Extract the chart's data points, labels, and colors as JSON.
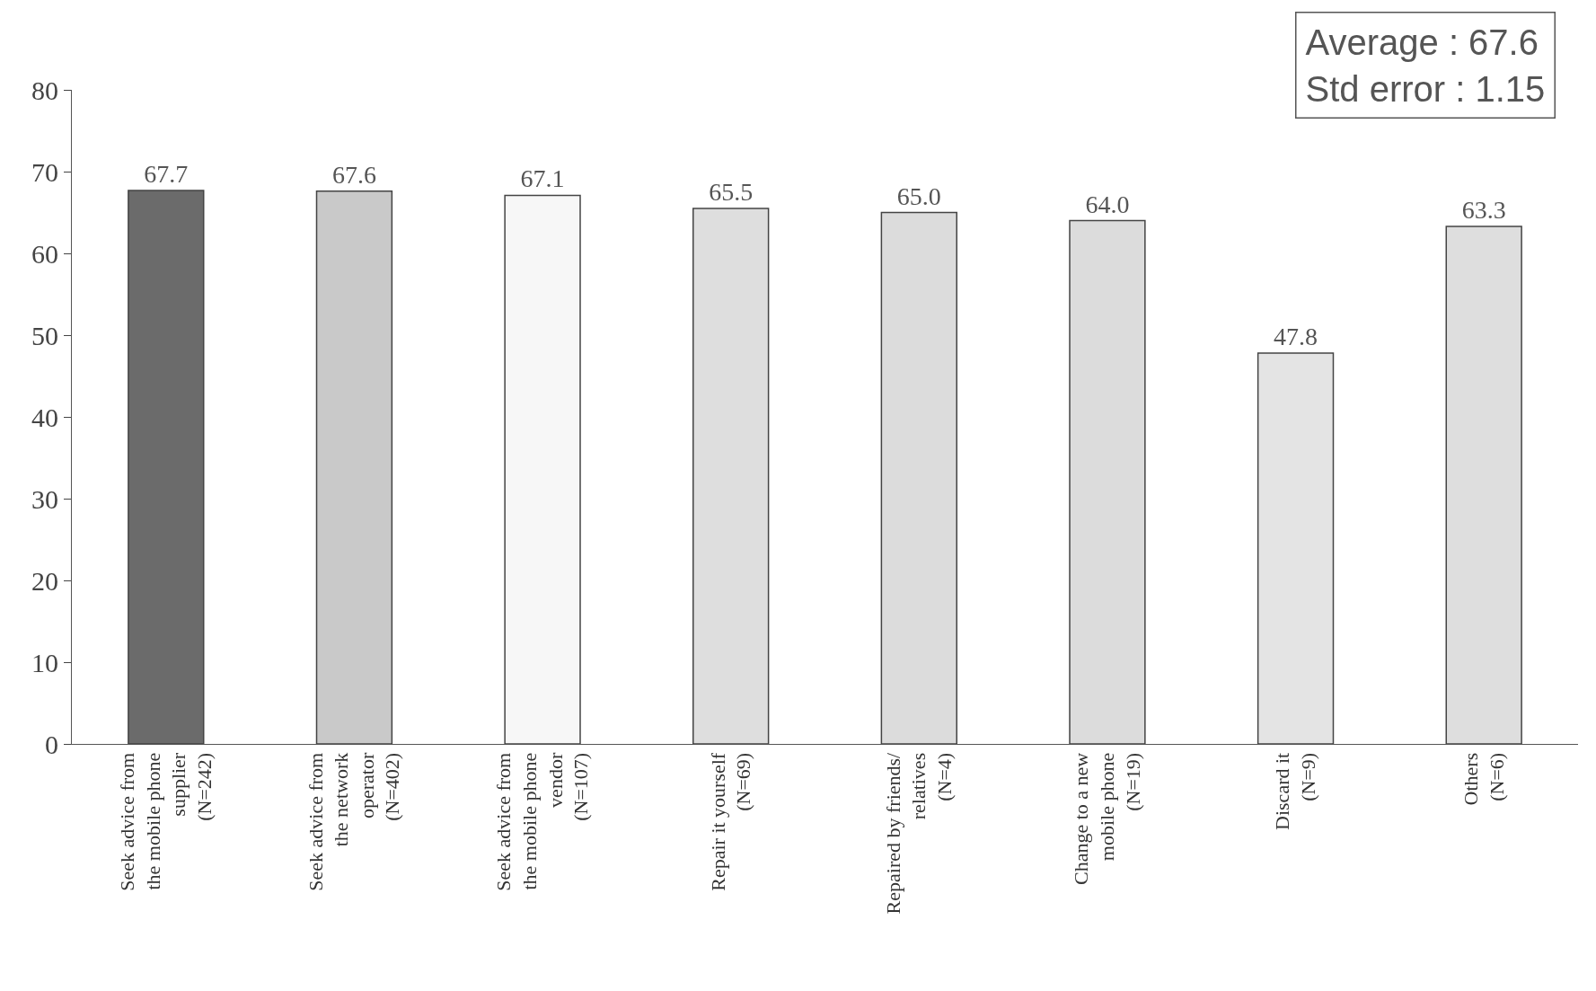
{
  "chart_data": {
    "type": "bar",
    "categories": [
      "Seek advice from\nthe mobile phone\nsupplier\n(N=242)",
      "Seek advice from\nthe network\noperator\n(N=402)",
      "Seek advice from\nthe mobile phone\nvendor\n(N=107)",
      "Repair it yourself\n(N=69)",
      "Repaired by friends/\nrelatives\n(N=4)",
      "Change to a new\nmobile phone\n(N=19)",
      "Discard it\n(N=9)",
      "Others\n(N=6)"
    ],
    "values": [
      67.7,
      67.6,
      67.1,
      65.5,
      65.0,
      64.0,
      47.8,
      63.3
    ],
    "colors": [
      "#6b6b6b",
      "#c9c9c9",
      "#f7f7f7",
      "#dedede",
      "#dcdcdc",
      "#dcdcdc",
      "#e4e4e4",
      "#dedede"
    ],
    "value_labels": [
      "67.7",
      "67.6",
      "67.1",
      "65.5",
      "65.0",
      "64.0",
      "47.8",
      "63.3"
    ],
    "ylim": [
      0,
      80
    ],
    "yticks": [
      0,
      10,
      20,
      30,
      40,
      50,
      60,
      70,
      80
    ],
    "grid": false,
    "legend": false,
    "annotations": [
      "Average : 67.6\nStd error : 1.15"
    ]
  }
}
